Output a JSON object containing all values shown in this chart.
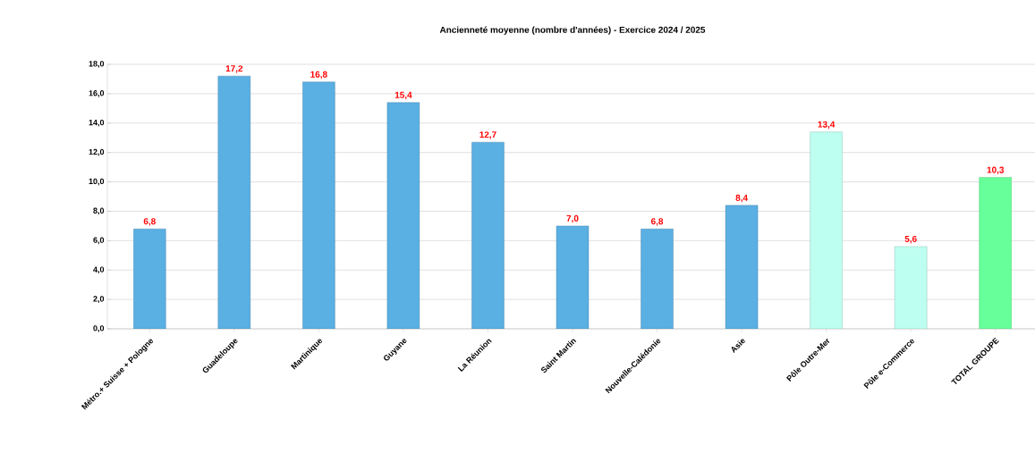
{
  "chart_data": {
    "type": "bar",
    "title": "Ancienneté moyenne (nombre d'années) - Exercice 2024 / 2025",
    "categories": [
      "Métro.+ Suisse + Pologne",
      "Guadeloupe",
      "Martinique",
      "Guyane",
      "La Réunion",
      "Saint Martin",
      "Nouvelle-Calédonie",
      "Asie",
      "Pôle Outre-Mer",
      "Pôle e-Commerce",
      "TOTAL GROUPE"
    ],
    "values": [
      6.8,
      17.2,
      16.8,
      15.4,
      12.7,
      7.0,
      6.8,
      8.4,
      13.4,
      5.6,
      10.3
    ],
    "value_labels": [
      "6,8",
      "17,2",
      "16,8",
      "15,4",
      "12,7",
      "7,0",
      "6,8",
      "8,4",
      "13,4",
      "5,6",
      "10,3"
    ],
    "colors": [
      "#5aafe3",
      "#5aafe3",
      "#5aafe3",
      "#5aafe3",
      "#5aafe3",
      "#5aafe3",
      "#5aafe3",
      "#5aafe3",
      "#bdfff0",
      "#bdfff0",
      "#66ff99"
    ],
    "ylim": [
      0,
      18
    ],
    "yticks": [
      {
        "value": 0,
        "label": "0,0"
      },
      {
        "value": 2,
        "label": "2,0"
      },
      {
        "value": 4,
        "label": "4,0"
      },
      {
        "value": 6,
        "label": "6,0"
      },
      {
        "value": 8,
        "label": "8,0"
      },
      {
        "value": 10,
        "label": "10,0"
      },
      {
        "value": 12,
        "label": "12,0"
      },
      {
        "value": 14,
        "label": "14,0"
      },
      {
        "value": 16,
        "label": "16,0"
      },
      {
        "value": 18,
        "label": "18,0"
      }
    ],
    "grid": "y"
  }
}
